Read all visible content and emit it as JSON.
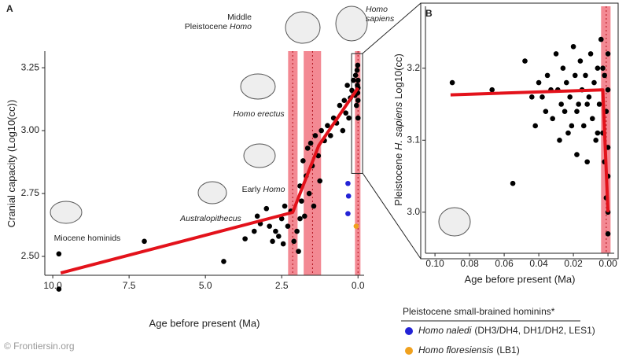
{
  "chart_data": [
    {
      "type": "scatter",
      "panel_label": "A",
      "xlabel": "Age before present (Ma)",
      "ylabel": [
        {
          "text": "Cranial capacity (Log10(cc))",
          "italic": false
        }
      ],
      "xlim": [
        10.26,
        -0.2
      ],
      "ylim": [
        2.425,
        3.316
      ],
      "xticks": [
        {
          "value": 10,
          "label": "10.0"
        },
        {
          "value": 7.5,
          "label": "7.5"
        },
        {
          "value": 5,
          "label": "5.0"
        },
        {
          "value": 2.5,
          "label": "2.5"
        },
        {
          "value": 0,
          "label": "0.0"
        }
      ],
      "yticks": [
        {
          "value": 2.5,
          "label": "2.50"
        },
        {
          "value": 2.75,
          "label": "2.75"
        },
        {
          "value": 3,
          "label": "3.00"
        },
        {
          "value": 3.25,
          "label": "3.25"
        }
      ],
      "series": [
        {
          "color": "#000000",
          "x": [
            9.8,
            9.8,
            7.0,
            4.4,
            3.7,
            3.4,
            3.3,
            3.2,
            3.0,
            2.9,
            2.8,
            2.7,
            2.6,
            2.5,
            2.45,
            2.4,
            2.3,
            2.2,
            2.1,
            2.0,
            1.95,
            1.9,
            1.9,
            1.85,
            1.8,
            1.75,
            1.7,
            1.65,
            1.6,
            1.55,
            1.5,
            1.45,
            1.4,
            1.3,
            1.25,
            1.2,
            1.1,
            1.0,
            0.9,
            0.8,
            0.7,
            0.6,
            0.5,
            0.45,
            0.4,
            0.35,
            0.3,
            0.25,
            0.2,
            0.15,
            0.1,
            0.08,
            0.05,
            0.03,
            0.02,
            0.01,
            0.01,
            0.0,
            0.0,
            0.0,
            0.0
          ],
          "y": [
            2.51,
            2.37,
            2.56,
            2.48,
            2.57,
            2.6,
            2.66,
            2.63,
            2.69,
            2.62,
            2.56,
            2.6,
            2.58,
            2.65,
            2.55,
            2.7,
            2.62,
            2.68,
            2.56,
            2.6,
            2.52,
            2.78,
            2.65,
            2.72,
            2.88,
            2.66,
            2.82,
            2.93,
            2.75,
            2.95,
            2.86,
            2.7,
            2.98,
            2.9,
            2.8,
            3.0,
            2.96,
            3.02,
            2.98,
            3.05,
            3.03,
            3.1,
            3.0,
            3.12,
            3.07,
            3.18,
            3.05,
            3.13,
            3.16,
            3.2,
            3.14,
            3.22,
            3.1,
            3.24,
            3.18,
            3.15,
            3.26,
            3.12,
            3.2,
            3.05,
            3.17
          ]
        },
        {
          "name": "Homo naledi",
          "name_note": "(DH3/DH4, DH1/DH2, LES1)",
          "color": "#2323d6",
          "x": [
            0.33,
            0.31,
            0.33
          ],
          "y": [
            2.79,
            2.74,
            2.67
          ]
        },
        {
          "name": "Homo floresiensis",
          "name_note": "(LB1)",
          "color": "#f0a11e",
          "x": [
            0.06
          ],
          "y": [
            2.62
          ]
        }
      ],
      "fit": {
        "color": "#e3121b",
        "x": [
          9.74,
          2.14,
          1.29,
          0.0
        ],
        "y": [
          2.434,
          2.675,
          2.94,
          3.17
        ]
      },
      "bands": [
        {
          "x": [
            2.29,
            1.98
          ],
          "center": 2.14
        },
        {
          "x": [
            1.78,
            1.21
          ],
          "center": 1.49
        },
        {
          "x": [
            0.1,
            -0.08
          ],
          "center": 0.0
        }
      ],
      "band_color": "#f06c78",
      "zoom_box": {
        "x": [
          0.21,
          -0.15
        ],
        "y": [
          2.83,
          3.306
        ]
      },
      "annotations": [
        [
          [
            {
              "text": "Miocene hominids",
              "italic": false
            }
          ]
        ],
        [
          [
            {
              "text": "Australopithecus",
              "italic": true
            }
          ]
        ],
        [
          [
            {
              "text": "Early ",
              "italic": false
            },
            {
              "text": "Homo",
              "italic": true
            }
          ]
        ],
        [
          [
            {
              "text": "Homo erectus",
              "italic": true
            }
          ]
        ],
        [
          [
            {
              "text": "Middle",
              "italic": false
            }
          ],
          [
            {
              "text": "Pleistocene ",
              "italic": false
            },
            {
              "text": "Homo",
              "italic": true
            }
          ]
        ],
        [
          [
            {
              "text": "Homo",
              "italic": true
            }
          ],
          [
            {
              "text": "sapiens",
              "italic": true
            }
          ]
        ]
      ],
      "legend_title": "Pleistocene small-brained hominins*"
    },
    {
      "type": "scatter",
      "panel_label": "B",
      "xlabel": "Age before present (Ma)",
      "ylabel": [
        {
          "text": "Pleistocene ",
          "italic": false
        },
        {
          "text": "H. sapiens",
          "italic": true
        },
        {
          "text": " Log10(cc)",
          "italic": false
        }
      ],
      "xlim": [
        0.1055,
        -0.0036
      ],
      "ylim": [
        2.943,
        3.286
      ],
      "xticks": [
        {
          "value": 0.1,
          "label": "0.10"
        },
        {
          "value": 0.08,
          "label": "0.08"
        },
        {
          "value": 0.06,
          "label": "0.06"
        },
        {
          "value": 0.04,
          "label": "0.04"
        },
        {
          "value": 0.02,
          "label": "0.02"
        },
        {
          "value": 0,
          "label": "0.00"
        }
      ],
      "yticks": [
        {
          "value": 3,
          "label": "3.0"
        },
        {
          "value": 3.1,
          "label": "3.1"
        },
        {
          "value": 3.2,
          "label": "3.2"
        }
      ],
      "series": [
        {
          "color": "#000000",
          "x": [
            0.09,
            0.067,
            0.055,
            0.048,
            0.044,
            0.042,
            0.04,
            0.038,
            0.036,
            0.035,
            0.033,
            0.032,
            0.03,
            0.029,
            0.028,
            0.027,
            0.026,
            0.025,
            0.024,
            0.023,
            0.022,
            0.021,
            0.02,
            0.019,
            0.018,
            0.018,
            0.017,
            0.016,
            0.015,
            0.014,
            0.013,
            0.012,
            0.012,
            0.011,
            0.01,
            0.009,
            0.008,
            0.007,
            0.006,
            0.006,
            0.005,
            0.004,
            0.003,
            0.003,
            0.002,
            0.002,
            0.001,
            0.001,
            0.0,
            0.0,
            0.0,
            0.0,
            0.0,
            0.0
          ],
          "y": [
            3.18,
            3.17,
            3.04,
            3.21,
            3.16,
            3.12,
            3.18,
            3.16,
            3.14,
            3.19,
            3.17,
            3.13,
            3.22,
            3.17,
            3.1,
            3.15,
            3.2,
            3.14,
            3.18,
            3.11,
            3.16,
            3.12,
            3.23,
            3.19,
            3.08,
            3.14,
            3.15,
            3.21,
            3.17,
            3.12,
            3.19,
            3.07,
            3.15,
            3.16,
            3.22,
            3.13,
            3.18,
            3.1,
            3.2,
            3.11,
            3.15,
            3.24,
            3.11,
            3.2,
            3.19,
            3.07,
            3.14,
            3.02,
            3.17,
            3.05,
            3.22,
            3.0,
            2.97,
            3.09
          ]
        }
      ],
      "fit": {
        "color": "#e3121b",
        "x": [
          0.091,
          0.003,
          0.0
        ],
        "y": [
          3.163,
          3.17,
          3.0
        ]
      },
      "bands": [
        {
          "x": [
            0.004,
            -0.0015
          ],
          "center": 0.001
        }
      ],
      "band_color": "#f06c78"
    }
  ],
  "watermark": "© Frontiersin.org"
}
